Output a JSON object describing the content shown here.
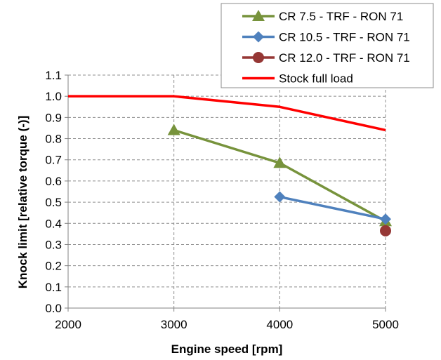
{
  "chart_data": {
    "type": "line",
    "title": "",
    "xlabel": "Engine speed [rpm]",
    "ylabel": "Knock limit [relative torque (-)]",
    "xlim": [
      2000,
      5000
    ],
    "ylim": [
      0.0,
      1.1
    ],
    "x_ticks": [
      "2000",
      "3000",
      "4000",
      "5000"
    ],
    "y_ticks": [
      "0.0",
      "0.1",
      "0.2",
      "0.3",
      "0.4",
      "0.5",
      "0.6",
      "0.7",
      "0.8",
      "0.9",
      "1.0",
      "1.1"
    ],
    "grid": "dashed",
    "legend_position": "top-right",
    "series": [
      {
        "name": "CR 7.5 - TRF - RON 71",
        "color": "#77933c",
        "marker": "triangle",
        "x": [
          3000,
          4000,
          5000
        ],
        "y": [
          0.84,
          0.685,
          0.41
        ]
      },
      {
        "name": "CR 10.5 - TRF - RON 71",
        "color": "#4f81bd",
        "marker": "diamond",
        "x": [
          4000,
          5000
        ],
        "y": [
          0.525,
          0.42
        ]
      },
      {
        "name": "CR 12.0 - TRF - RON 71",
        "color": "#953735",
        "marker": "circle",
        "x": [
          5000
        ],
        "y": [
          0.365
        ]
      },
      {
        "name": "Stock full load",
        "color": "#ff0000",
        "marker": "none",
        "x": [
          2000,
          3000,
          4000,
          5000
        ],
        "y": [
          1.0,
          1.0,
          0.95,
          0.84
        ]
      }
    ]
  }
}
